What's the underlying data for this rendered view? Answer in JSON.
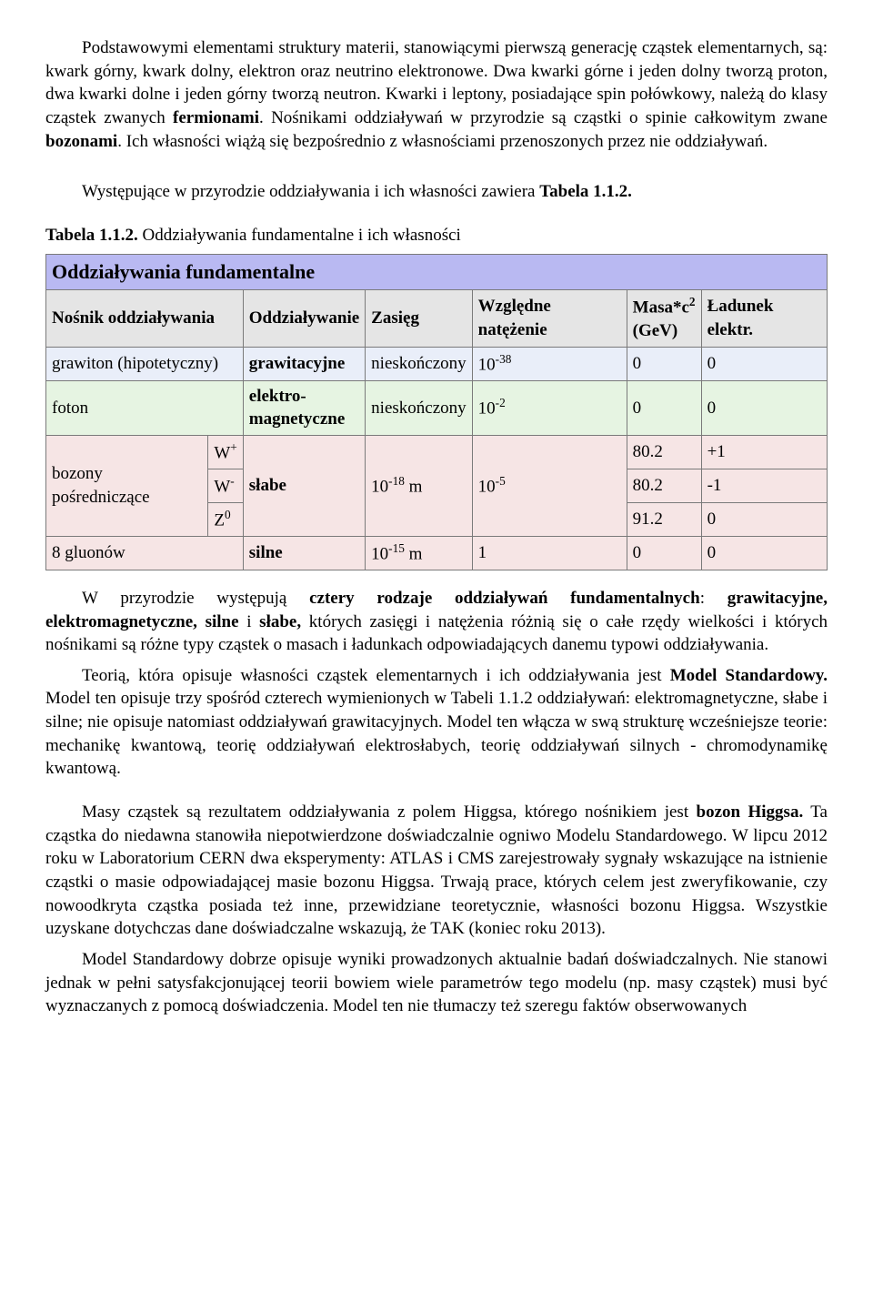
{
  "para1": {
    "t0": "Podstawowymi elementami struktury materii, stanowiącymi pierwszą generację cząstek elementarnych, są: kwark górny, kwark dolny, elektron oraz neutrino elektronowe. Dwa kwarki górne i jeden dolny tworzą proton, dwa kwarki dolne i jeden górny tworzą neutron. Kwarki i leptony, posiadające spin połówkowy, należą do klasy cząstek zwanych ",
    "b1": "fermionami",
    "t2": ". Nośnikami oddziaływań w przyrodzie są cząstki o spinie całkowitym zwane ",
    "b3": "bozonami",
    "t4": ". Ich własności wiążą się bezpośrednio z własnościami przenoszonych przez nie oddziaływań."
  },
  "para2": {
    "t0": "Występujące w przyrodzie oddziaływania i ich własności zawiera ",
    "b1": "Tabela 1.1.2."
  },
  "caption": {
    "b0": "Tabela 1.1.2.",
    "t1": " Oddziaływania fundamentalne i ich własności"
  },
  "table": {
    "title": "Oddziaływania fundamentalne",
    "h": {
      "carrier": "Nośnik oddziaływania",
      "inter": "Oddziaływanie",
      "range": "Zasięg",
      "rel": "Względne natężenie",
      "mass": "Masa*c",
      "mass_sup": "2",
      "mass_unit": "(GeV)",
      "charge": "Ładunek elektr."
    },
    "r1": {
      "carrier": "grawiton (hipotetyczny)",
      "inter": "grawitacyjne",
      "range": "nieskończony",
      "rel_base": "10",
      "rel_sup": "-38",
      "mass": "0",
      "charge": "0"
    },
    "r2": {
      "carrier": "foton",
      "inter_a": "elektro-",
      "inter_b": "magnetyczne",
      "range": "nieskończony",
      "rel_base": "10",
      "rel_sup": "-2",
      "mass": "0",
      "charge": "0"
    },
    "r3": {
      "carrier": "bozony pośredniczące",
      "inter": "słabe",
      "range_base": " 10",
      "range_sup": "-18",
      "range_unit": " m",
      "rel_base": "10",
      "rel_sup": "-5",
      "w_plus_b": "W",
      "w_plus_s": "+",
      "w_plus_mass": "80.2",
      "w_plus_charge": "+1",
      "w_min_b": "W",
      "w_min_s": "-",
      "w_min_mass": "80.2",
      "w_min_charge": "-1",
      "z_b": "Z",
      "z_s": "0",
      "z_mass": "91.2",
      "z_charge": "0"
    },
    "r4": {
      "carrier": "8 gluonów",
      "inter": "silne",
      "range_base": "10",
      "range_sup": "-15",
      "range_unit": " m",
      "rel": "1",
      "mass": "0",
      "charge": "0"
    },
    "colors": {
      "title_bg": "#b9b9f2",
      "header_bg": "#e5e5e5",
      "blue_bg": "#e9eef9",
      "green_bg": "#e6f4e2",
      "pink_bg": "#f6e5e5",
      "border": "#7a7a7a"
    }
  },
  "para3": {
    "t0": "W przyrodzie występują ",
    "b1": "cztery rodzaje oddziaływań fundamentalnych",
    "t2": ": ",
    "b3": "grawitacyjne, elektromagnetyczne, silne",
    "t4": " i ",
    "b5": "słabe,",
    "t6": " których zasięgi i natężenia różnią się o całe rzędy wielkości i których nośnikami są różne typy cząstek o masach i ładunkach odpowiadających danemu typowi oddziaływania."
  },
  "para4": {
    "t0": "Teorią, która opisuje własności cząstek elementarnych i ich oddziaływania jest ",
    "b1": "Model Standardowy.",
    "t2": " Model ten opisuje trzy spośród czterech wymienionych w Tabeli 1.1.2 oddziaływań: elektromagnetyczne, słabe i silne; nie opisuje natomiast oddziaływań grawitacyjnych. Model ten włącza w swą strukturę wcześniejsze teorie: mechanikę kwantową, teorię oddziaływań elektrosłabych, teorię oddziaływań silnych - chromodynamikę kwantową."
  },
  "para5": {
    "t0": "Masy cząstek są rezultatem oddziaływania z polem Higgsa, którego nośnikiem jest ",
    "b1": "bozon Higgsa.",
    "t2": " Ta cząstka do niedawna stanowiła niepotwierdzone doświadczalnie ogniwo Modelu Standardowego. W lipcu 2012 roku w Laboratorium CERN dwa eksperymenty: ATLAS i CMS zarejestrowały sygnały wskazujące na istnienie cząstki o masie odpowiadającej masie bozonu Higgsa. Trwają prace, których celem jest zweryfikowanie, czy nowoodkryta cząstka posiada też inne, przewidziane teoretycznie, własności bozonu Higgsa. Wszystkie uzyskane dotychczas dane doświadczalne wskazują, że TAK (koniec roku 2013)."
  },
  "para6": "Model Standardowy dobrze opisuje wyniki prowadzonych aktualnie badań doświadczalnych. Nie stanowi jednak w pełni satysfakcjonującej teorii bowiem wiele parametrów tego modelu (np. masy cząstek) musi być wyznaczanych z pomocą doświadczenia. Model ten nie tłumaczy też szeregu faktów obserwowanych"
}
